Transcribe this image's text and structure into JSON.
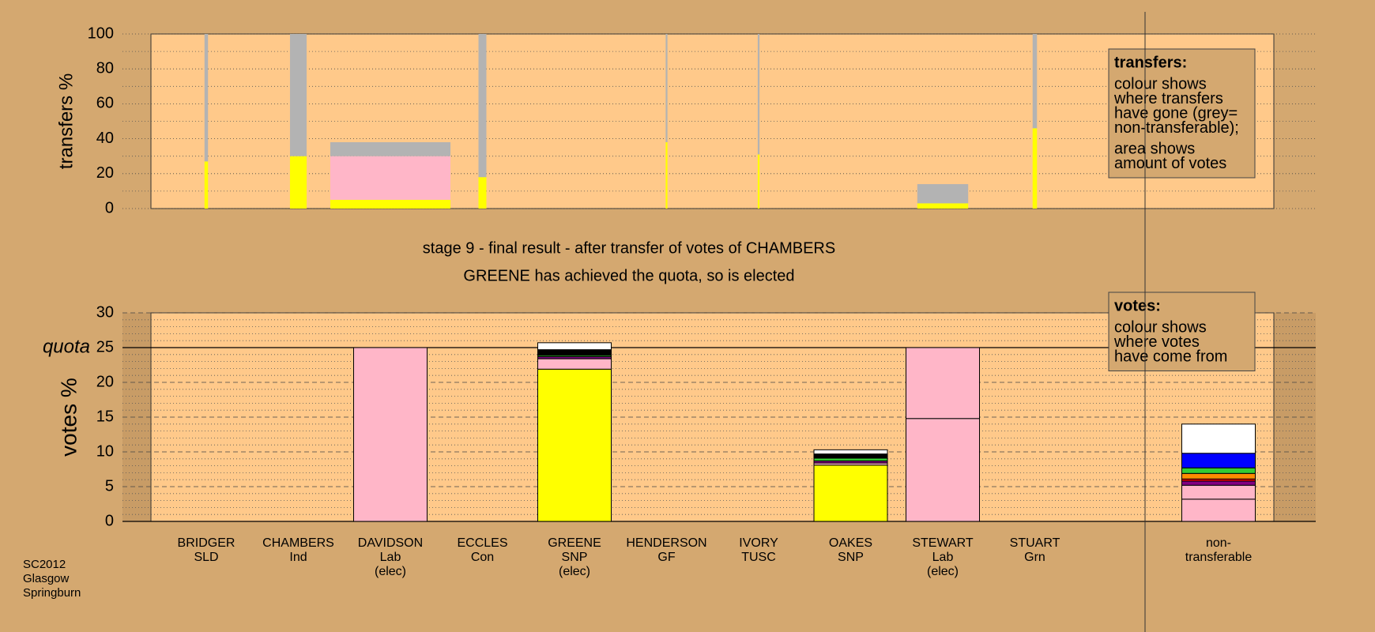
{
  "chart_data": [
    {
      "type": "stacked-bar",
      "ylabel": "transfers %",
      "ylim": [
        0,
        100
      ],
      "yticks": [
        0,
        20,
        40,
        60,
        80,
        100
      ],
      "minor_yticks": [
        10,
        30,
        50,
        70,
        90
      ],
      "grid": true,
      "bar_widths": [
        4,
        19,
        137,
        9,
        0,
        2,
        2,
        0,
        58,
        5
      ],
      "series": [
        {
          "color": "#ffff00",
          "values": [
            27,
            30,
            5,
            18,
            0,
            38,
            31,
            0,
            3,
            46
          ]
        },
        {
          "color": "#ffb6c8",
          "values": [
            0,
            0,
            25,
            0,
            0,
            0,
            0,
            0,
            0,
            0
          ]
        },
        {
          "color": "#b3b3b3",
          "values": [
            73,
            70,
            8,
            82,
            0,
            62,
            69,
            0,
            11,
            54
          ]
        }
      ],
      "legend": {
        "title": "transfers:",
        "paragraphs": [
          [
            "colour shows",
            "where transfers",
            "have gone (grey=",
            "non-transferable);"
          ],
          [
            "area shows",
            "amount of votes"
          ]
        ]
      }
    },
    {
      "type": "stacked-bar",
      "title": "stage 9 - final result - after transfer of votes of CHAMBERS",
      "subtitle": "GREENE has achieved the quota, so is elected",
      "ylabel": "votes %",
      "ylim": [
        0,
        30
      ],
      "yticks": [
        0,
        5,
        10,
        15,
        20,
        25,
        30
      ],
      "minor_yticks": [
        1,
        2,
        3,
        4,
        6,
        7,
        8,
        9,
        11,
        12,
        13,
        14,
        16,
        17,
        18,
        19,
        21,
        22,
        23,
        24,
        26,
        27,
        28,
        29
      ],
      "grid": true,
      "quota": 25,
      "quota_label": "quota",
      "categories": [
        [
          "BRIDGER",
          "SLD"
        ],
        [
          "CHAMBERS",
          "Ind"
        ],
        [
          "DAVIDSON",
          "Lab",
          "(elec)"
        ],
        [
          "ECCLES",
          "Con"
        ],
        [
          "GREENE",
          "SNP",
          "(elec)"
        ],
        [
          "HENDERSON",
          "GF"
        ],
        [
          "IVORY",
          "TUSC"
        ],
        [
          "OAKES",
          "SNP"
        ],
        [
          "STEWART",
          "Lab",
          "(elec)"
        ],
        [
          "STUART",
          "Grn"
        ],
        [
          "non-",
          "transferable"
        ]
      ],
      "series": [
        {
          "color": "#ffff00",
          "values": [
            0,
            0,
            0,
            0,
            21.9,
            0,
            0,
            8.1,
            0,
            0,
            0
          ]
        },
        {
          "color": "#ffb6c8",
          "values": [
            0,
            0,
            25,
            0,
            1.5,
            0,
            0,
            0.3,
            14.8,
            0,
            3.2
          ]
        },
        {
          "color": "#ffb6c8",
          "values": [
            0,
            0,
            0,
            0,
            0,
            0,
            0,
            0,
            10.2,
            0,
            2.0
          ]
        },
        {
          "color": "#800080",
          "values": [
            0,
            0,
            0,
            0,
            0.3,
            0,
            0,
            0.3,
            0,
            0,
            0.6
          ]
        },
        {
          "color": "#ff0000",
          "values": [
            0,
            0,
            0,
            0,
            0,
            0,
            0,
            0,
            0,
            0,
            0.3
          ]
        },
        {
          "color": "#ff8c00",
          "values": [
            0,
            0,
            0,
            0,
            0,
            0,
            0,
            0,
            0,
            0,
            0.8
          ]
        },
        {
          "color": "#33cc33",
          "values": [
            0,
            0,
            0,
            0,
            0.2,
            0,
            0,
            0.4,
            0,
            0,
            0.8
          ]
        },
        {
          "color": "#0000ff",
          "values": [
            0,
            0,
            0,
            0,
            0,
            0,
            0,
            0,
            0,
            0,
            2.1
          ]
        },
        {
          "color": "#000000",
          "values": [
            0,
            0,
            0,
            0,
            0.8,
            0,
            0,
            0.6,
            0,
            0,
            0
          ]
        },
        {
          "color": "#ffffff",
          "values": [
            0,
            0,
            0,
            0,
            1.0,
            0,
            0,
            0.6,
            0,
            0,
            4.2
          ]
        }
      ],
      "legend": {
        "title": "votes:",
        "paragraphs": [
          [
            "colour shows",
            "where votes",
            "have come from"
          ]
        ]
      }
    }
  ],
  "footer": [
    "SC2012",
    "Glasgow",
    "Springburn"
  ]
}
